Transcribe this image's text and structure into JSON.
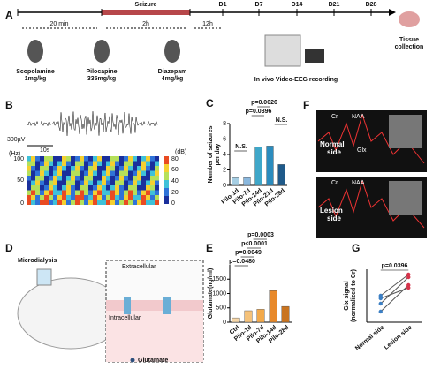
{
  "panels": {
    "a": {
      "label": "A",
      "seizure": "Seizure",
      "intervals": [
        "20 min",
        "2h",
        "12h"
      ],
      "days": [
        "D1",
        "D7",
        "D14",
        "D21",
        "D28"
      ],
      "drugs": [
        [
          "Scopolamine",
          "1mg/kg"
        ],
        [
          "Pilocapine",
          "335mg/kg"
        ],
        [
          "Diazepam",
          "4mg/kg"
        ]
      ],
      "recording": "In vivo Video-EEG recording",
      "tissue": [
        "Tissue",
        "collection"
      ]
    },
    "b": {
      "label": "B",
      "scale_v": "300µV",
      "scale_t": "10s",
      "hz": "(Hz)",
      "hz_ticks": [
        "100",
        "50",
        "0"
      ],
      "db": "(dB)",
      "db_ticks": [
        "80",
        "60",
        "40",
        "20",
        "0"
      ]
    },
    "d": {
      "label": "D",
      "microdialysis": "Microdialysis",
      "extracellular": "Extracellular",
      "intracellular": "Intracellular",
      "glutamate": "Glutamate"
    },
    "f": {
      "label": "F",
      "peaks": [
        "Cr",
        "NAA",
        "Glx"
      ],
      "sides": [
        [
          "Normal",
          "side"
        ],
        [
          "Lesion",
          "side"
        ]
      ]
    }
  },
  "chart_data": [
    {
      "type": "bar",
      "label": "C",
      "ylabel": [
        "Number of seizures",
        "per day"
      ],
      "categories": [
        "Pilo-1d",
        "Pilo-7d",
        "Pilo-14d",
        "Pilo-21d",
        "Pilo-28d"
      ],
      "values": [
        1,
        1,
        5,
        5.1,
        2.7
      ],
      "colors": [
        "#a6cee3",
        "#8ab8de",
        "#3fa7c9",
        "#2b8cbe",
        "#1f5a8a"
      ],
      "ylim": [
        0,
        8
      ],
      "yticks": [
        0,
        2,
        4,
        6,
        8
      ],
      "annotations": [
        "N.S.",
        "p=0.0396",
        "p=0.0026",
        "N.S."
      ]
    },
    {
      "type": "bar",
      "label": "E",
      "ylabel": [
        "Glutamate(ng/ml)"
      ],
      "categories": [
        "Ctrl",
        "Pilo-1d",
        "Pilo-7d",
        "Pilo-14d",
        "Pilo-28d"
      ],
      "values": [
        150,
        400,
        450,
        1100,
        550
      ],
      "colors": [
        "#f7d7a8",
        "#f5c27a",
        "#f2a94a",
        "#e8892a",
        "#c97420"
      ],
      "ylim": [
        0,
        2000
      ],
      "yticks": [
        0,
        500,
        1000,
        1500
      ],
      "annotations": [
        "p=0.0480",
        "p=0.0049",
        "p<0.0001",
        "p=0.0003"
      ]
    },
    {
      "type": "line",
      "label": "G",
      "ylabel": [
        "Glx signal",
        "(normalized to Cr)"
      ],
      "categories": [
        "Normal side",
        "Lesion side"
      ],
      "ylim": [
        0.6,
        1.6
      ],
      "annotations": [
        "p=0.0396"
      ],
      "series": [
        {
          "color": "#3b7fc4",
          "values": [
            0.8,
            1.3
          ]
        },
        {
          "color": "#3b7fc4",
          "values": [
            0.95,
            1.45
          ]
        },
        {
          "color": "#3b7fc4",
          "values": [
            1.05,
            1.25
          ]
        },
        {
          "color": "#3b7fc4",
          "values": [
            1.1,
            1.5
          ]
        }
      ]
    }
  ]
}
